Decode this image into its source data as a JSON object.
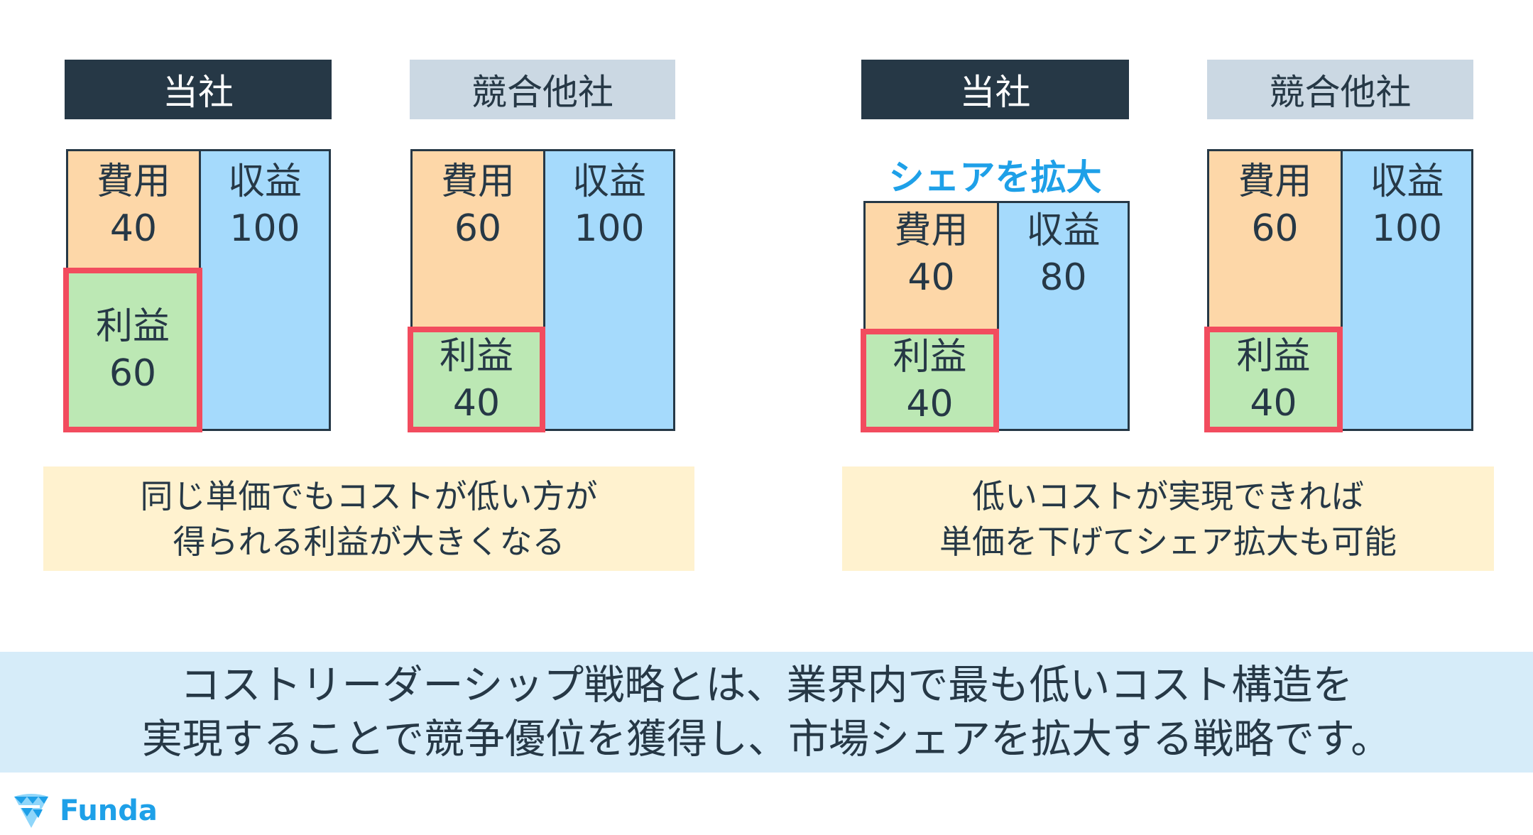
{
  "colors": {
    "dark": "#263846",
    "cost": "#fdd7a8",
    "revenue": "#a5dafc",
    "profit": "#bce8b4",
    "highlight": "#f24c5e",
    "competitor_header": "#cbd8e3",
    "caption_bg": "#fff2cf",
    "band_bg": "#d6ecf9",
    "accent": "#1ea0e8"
  },
  "left": {
    "ours": {
      "header": "当社",
      "cost_label": "費用",
      "cost": "40",
      "revenue_label": "収益",
      "revenue": "100",
      "profit_label": "利益",
      "profit": "60"
    },
    "competitor": {
      "header": "競合他社",
      "cost_label": "費用",
      "cost": "60",
      "revenue_label": "収益",
      "revenue": "100",
      "profit_label": "利益",
      "profit": "40"
    },
    "caption": [
      "同じ単価でもコストが低い方が",
      "得られる利益が大きくなる"
    ]
  },
  "right": {
    "ours": {
      "header": "当社",
      "note": "シェアを拡大",
      "cost_label": "費用",
      "cost": "40",
      "revenue_label": "収益",
      "revenue": "80",
      "profit_label": "利益",
      "profit": "40"
    },
    "competitor": {
      "header": "競合他社",
      "cost_label": "費用",
      "cost": "60",
      "revenue_label": "収益",
      "revenue": "100",
      "profit_label": "利益",
      "profit": "40"
    },
    "caption": [
      "低いコストが実現できれば",
      "単価を下げてシェア拡大も可能"
    ]
  },
  "summary": [
    "コストリーダーシップ戦略とは、業界内で最も低いコスト構造を",
    "実現することで競争優位を獲得し、市場シェアを拡大する戦略です。"
  ],
  "logo": {
    "text": "Funda",
    "icon": "diamond-logo-icon"
  }
}
